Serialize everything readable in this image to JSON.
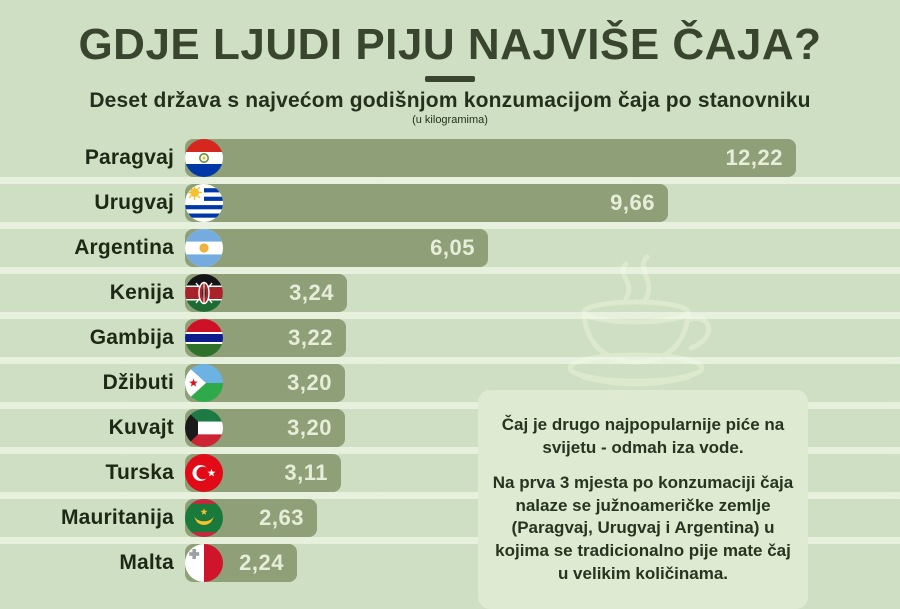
{
  "header": {
    "title": "GDJE LJUDI PIJU NAJVIŠE ČAJA?",
    "subtitle": "Deset država s najvećom godišnjom konzumacijom čaja po stanovniku",
    "unit_note": "(u kilogramima)"
  },
  "chart_data": {
    "type": "bar",
    "orientation": "horizontal",
    "title": "GDJE LJUDI PIJU NAJVIŠE ČAJA?",
    "subtitle": "Deset država s najvećom godišnjom konzumacijom čaja po stanovniku",
    "unit": "kilogrami po stanovniku godišnje",
    "categories": [
      "Paragvaj",
      "Urugvaj",
      "Argentina",
      "Kenija",
      "Gambija",
      "Džibuti",
      "Kuvajt",
      "Turska",
      "Mauritanija",
      "Malta"
    ],
    "values": [
      12.22,
      9.66,
      6.05,
      3.24,
      3.22,
      3.2,
      3.2,
      3.11,
      2.63,
      2.24
    ],
    "value_labels": [
      "12,22",
      "9,66",
      "6,05",
      "3,24",
      "3,22",
      "3,20",
      "3,20",
      "3,11",
      "2,63",
      "2,24"
    ],
    "flags": [
      "paraguay",
      "uruguay",
      "argentina",
      "kenya",
      "gambia",
      "djibouti",
      "kuwait",
      "turkey",
      "mauritania",
      "malta"
    ],
    "xlim": [
      0,
      12.22
    ],
    "grid": false,
    "legend": false,
    "value_label_position": "inside-end"
  },
  "note_box": {
    "paragraph1": "Čaj je drugo najpopularnije piće na svijetu - odmah iza vode.",
    "paragraph2": "Na prva 3 mjesta po konzumaciji čaja nalaze se južnoameričke zemlje (Paragvaj, Urugvaj i Argentina) u kojima se tradicionalno pije mate čaj u velikim količinama."
  },
  "icons": {
    "decoration": "tea-cup-icon",
    "row_icons": "country-flag-icons"
  },
  "colors": {
    "background": "#cfdfc3",
    "bar_fill": "#8f9f78",
    "bar_value_text": "#e6eed9",
    "title_text": "#39452e",
    "label_text": "#1d2916",
    "subtitle_text": "#24301d",
    "note_box_bg": "#deebd2",
    "note_text": "#273421",
    "cup_outline": "#dce9cc"
  }
}
